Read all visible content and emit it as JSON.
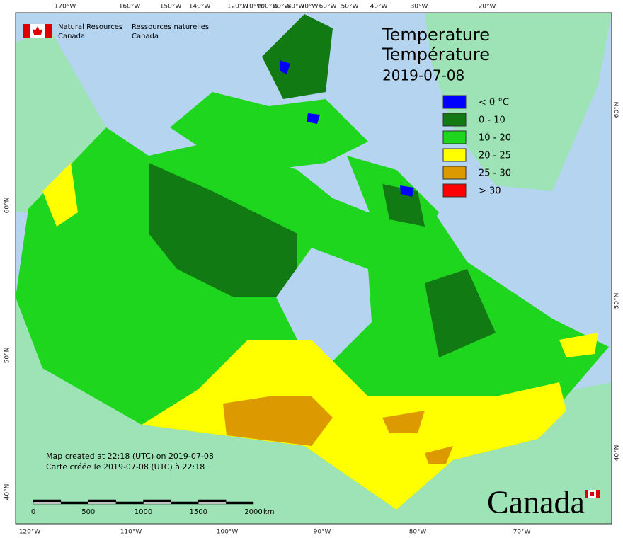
{
  "credit": {
    "en": [
      "Natural Resources",
      "Canada"
    ],
    "fr": [
      "Ressources naturelles",
      "Canada"
    ]
  },
  "title": [
    "Temperature",
    "Température",
    "2019-07-08"
  ],
  "legend": [
    {
      "label": "< 0 °C",
      "color": "#0000ff"
    },
    {
      "label": "0 - 10",
      "color": "#127a12"
    },
    {
      "label": "10 - 20",
      "color": "#1ed61e"
    },
    {
      "label": "20 - 25",
      "color": "#ffff00"
    },
    {
      "label": "25 - 30",
      "color": "#dd9a00"
    },
    {
      "label": "> 30",
      "color": "#ff0000"
    }
  ],
  "graticule": {
    "top": [
      "170°W",
      "160°W",
      "150°W",
      "140°W",
      "120°W",
      "110°W",
      "100°W",
      "90°W",
      "80°W",
      "70°W",
      "60°W",
      "50°W",
      "40°W",
      "30°W",
      "20°W"
    ],
    "bottom": [
      "120°W",
      "110°W",
      "100°W",
      "90°W",
      "80°W",
      "70°W"
    ],
    "left": [
      "60°N",
      "50°N",
      "40°N"
    ],
    "right": [
      "60°N",
      "50°N",
      "40°N"
    ]
  },
  "note": [
    "Map created at 22:18 (UTC) on 2019-07-08",
    "Carte créée le 2019-07-08 (UTC) à 22:18"
  ],
  "scale_bar": {
    "ticks": [
      0,
      500,
      1000,
      1500,
      2000
    ],
    "unit": "km"
  },
  "wordmark": "Canada"
}
